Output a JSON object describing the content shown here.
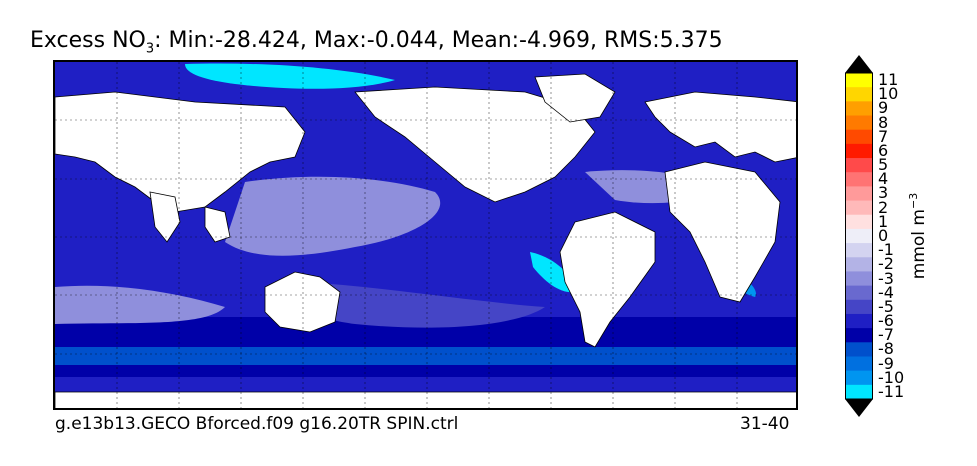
{
  "title": {
    "prefix": "Excess NO",
    "subscript": "3",
    "stats": ": Min:-28.424, Max:-0.044, Mean:-4.969, RMS:5.375"
  },
  "caption": {
    "left": "g.e13b13.GECO Bforced.f09 g16.20TR SPIN.ctrl",
    "right": "31-40"
  },
  "colorbar": {
    "units_label": "mmol m",
    "units_exponent": "−3",
    "ticks": [
      "11",
      "10",
      "9",
      "8",
      "7",
      "6",
      "5",
      "4",
      "3",
      "2",
      "1",
      "0",
      "-1",
      "-2",
      "-3",
      "-4",
      "-5",
      "-6",
      "-7",
      "-8",
      "-9",
      "-10",
      "-11"
    ],
    "colors": [
      "#ffff00",
      "#ffd600",
      "#ff9f00",
      "#ff7a00",
      "#ff4a00",
      "#ff1a00",
      "#ff4a4a",
      "#ff7373",
      "#ff9a9a",
      "#ffb9b9",
      "#ffe0e0",
      "#eeeef8",
      "#d3d3f0",
      "#b3b3e6",
      "#8f8fdc",
      "#6969cf",
      "#4545c6",
      "#1f1fc4",
      "#0000a8",
      "#0050cc",
      "#0070e0",
      "#0095f0",
      "#00e6ff"
    ],
    "extend_color": "#000000"
  },
  "map": {
    "ocean_colors": {
      "deep": "#0000a8",
      "mid": "#1f1fc4",
      "light": "#4545c6",
      "pale": "#8f8fdc",
      "cyan": "#00e6ff",
      "sky": "#0070e0"
    },
    "land_color": "#ffffff"
  }
}
